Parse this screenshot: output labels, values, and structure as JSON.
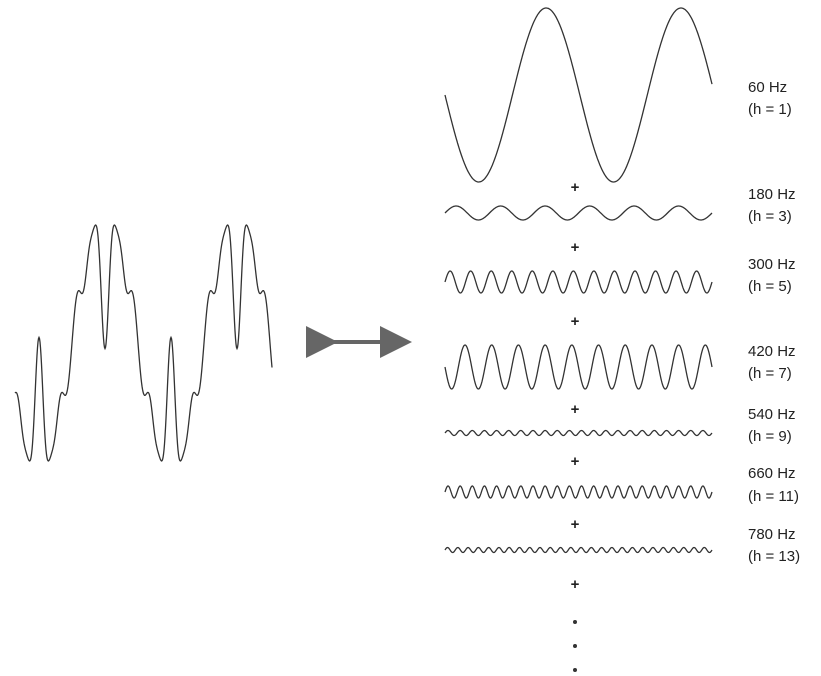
{
  "plus": "+",
  "harmonics": [
    {
      "frequency": "60 Hz",
      "order": "(h = 1)"
    },
    {
      "frequency": "180 Hz",
      "order": "(h = 3)"
    },
    {
      "frequency": "300 Hz",
      "order": "(h = 5)"
    },
    {
      "frequency": "420 Hz",
      "order": "(h = 7)"
    },
    {
      "frequency": "540 Hz",
      "order": "(h = 9)"
    },
    {
      "frequency": "660 Hz",
      "order": "(h = 11)"
    },
    {
      "frequency": "780 Hz",
      "order": "(h = 13)"
    }
  ]
}
